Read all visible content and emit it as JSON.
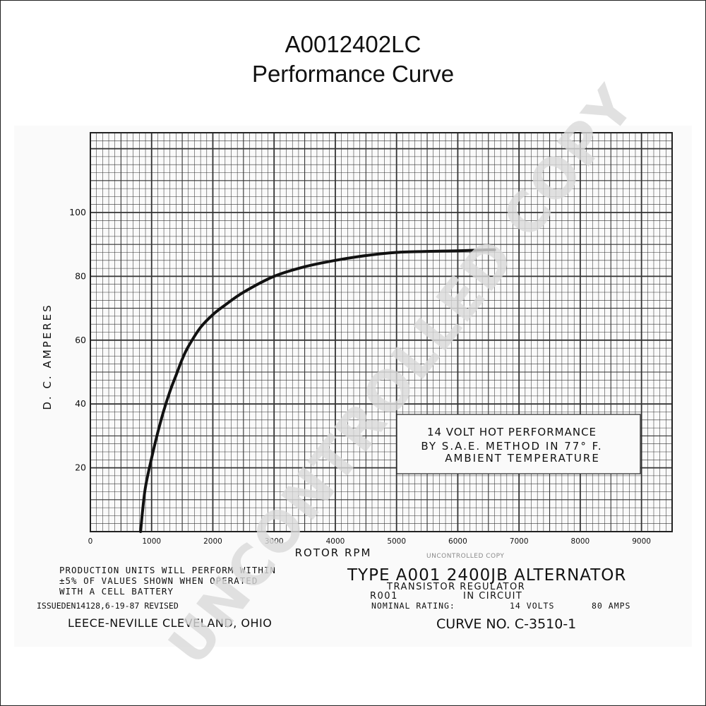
{
  "header": {
    "title": "A0012402LC",
    "subtitle": "Performance Curve"
  },
  "chart_data": {
    "type": "line",
    "ylabel": "D. C. AMPERES",
    "xlabel": "ROTOR RPM",
    "xlim": [
      0,
      9500
    ],
    "ylim": [
      0,
      125
    ],
    "grid": true,
    "x_ticks": [
      "0",
      "1000",
      "2000",
      "3000",
      "4000",
      "5000",
      "6000",
      "7000",
      "8000",
      "9000"
    ],
    "y_ticks": [
      "20",
      "40",
      "60",
      "80",
      "100"
    ],
    "series": [
      {
        "x": [
          820,
          850,
          900,
          1000,
          1100,
          1200,
          1300,
          1400,
          1500,
          1600,
          1800,
          2000,
          2200,
          2500,
          3000,
          3500,
          4000,
          4500,
          5000,
          5500,
          6000,
          6500,
          6600
        ],
        "values": [
          0,
          6,
          14,
          23,
          31,
          38,
          44,
          49,
          54,
          58,
          64,
          68,
          71,
          75,
          80,
          83,
          85,
          86.5,
          87.5,
          87.8,
          88,
          88.3,
          88.3
        ]
      }
    ],
    "annotation": [
      "14 VOLT HOT PERFORMANCE",
      "BY S.A.E. METHOD IN 77° F.",
      "AMBIENT TEMPERATURE"
    ]
  },
  "notes": {
    "production": [
      "PRODUCTION UNITS WILL PERFORM WITHIN",
      "±5% OF VALUES SHOWN WHEN OPERATED",
      "WITH A CELL BATTERY"
    ],
    "issued": "ISSUEDEN14128,6-19-87 REVISED",
    "company": "LEECE-NEVILLE CLEVELAND, OHIO",
    "stamp": "UNCONTROLLED COPY",
    "type_line": "TYPE A001 2400JB ALTERNATOR",
    "regulator": "TRANSISTOR REGULATOR",
    "regulator_code": "R001",
    "in_circuit": "IN CIRCUIT",
    "nominal_label": "NOMINAL RATING:",
    "nominal_volts": "14 VOLTS",
    "nominal_amps": "80 AMPS",
    "curve_no": "CURVE NO. C-3510-1"
  },
  "watermark": "UNCONTROLLED COPY",
  "colors": {
    "ink": "#111111",
    "grid": "#333333",
    "watermark": "#d9d9d9"
  }
}
